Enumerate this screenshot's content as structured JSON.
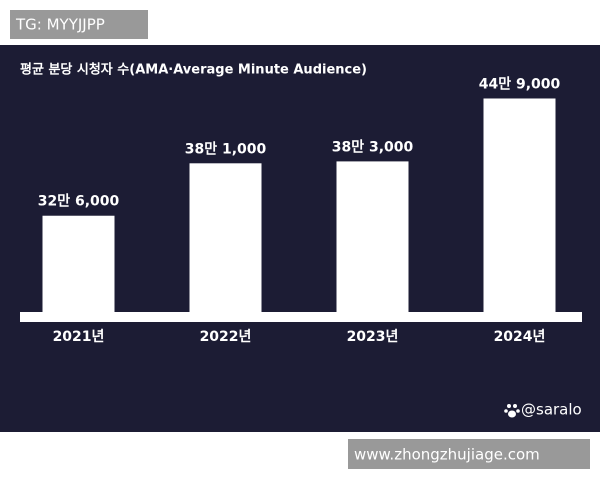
{
  "overlay_top": "TG: MYYJJPP",
  "overlay_bottom": "www.zhongzhujiage.com",
  "credit": "@saralo",
  "chart_data": {
    "type": "bar",
    "title": "평균 분당 시청자 수(AMA·Average Minute Audience)",
    "categories": [
      "2021년",
      "2022년",
      "2023년",
      "2024년"
    ],
    "values": [
      326000,
      381000,
      383000,
      449000
    ],
    "value_labels": [
      "32만 6,000",
      "38만 1,000",
      "38만 3,000",
      "44만 9,000"
    ],
    "color": "#ffffff",
    "ylim": [
      225000,
      460000
    ]
  }
}
